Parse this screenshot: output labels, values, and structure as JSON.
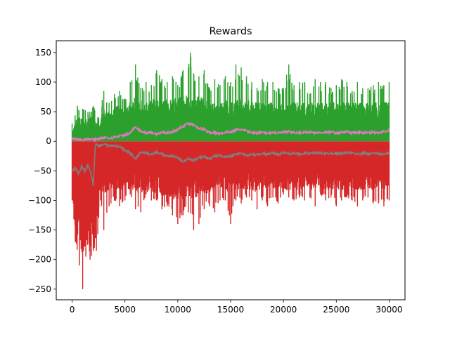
{
  "chart_data": {
    "type": "line",
    "title": "Rewards",
    "xlabel": "",
    "ylabel": "",
    "xlim": [
      -1500,
      31500
    ],
    "ylim": [
      -268,
      170
    ],
    "x_ticks": [
      0,
      5000,
      10000,
      15000,
      20000,
      25000,
      30000
    ],
    "y_ticks": [
      150,
      100,
      50,
      0,
      -50,
      -100,
      -150,
      -200,
      -250
    ],
    "grid": false,
    "legend": "none",
    "series": [
      {
        "color": "#2ca02c",
        "kind": "positive reward envelope",
        "x": [
          0,
          500,
          1000,
          1500,
          2000,
          2500,
          3000,
          3500,
          4000,
          4500,
          5000,
          5500,
          6000,
          6500,
          7000,
          7500,
          8000,
          8500,
          9000,
          9500,
          10000,
          10500,
          11000,
          11200,
          11500,
          12000,
          12500,
          13000,
          13500,
          14000,
          14500,
          15000,
          15500,
          16000,
          16500,
          17000,
          17500,
          18000,
          18500,
          19000,
          19500,
          20000,
          20500,
          21000,
          21500,
          22000,
          22500,
          23000,
          23500,
          24000,
          24500,
          25000,
          25500,
          26000,
          26500,
          27000,
          27500,
          28000,
          28500,
          29000,
          29500,
          30000
        ],
        "max": [
          30,
          60,
          55,
          50,
          60,
          40,
          85,
          65,
          80,
          85,
          70,
          100,
          130,
          90,
          100,
          95,
          120,
          105,
          100,
          110,
          95,
          120,
          125,
          150,
          115,
          110,
          120,
          90,
          105,
          95,
          110,
          100,
          130,
          125,
          110,
          100,
          90,
          105,
          100,
          100,
          90,
          90,
          130,
          95,
          100,
          100,
          80,
          105,
          100,
          100,
          90,
          95,
          105,
          100,
          85,
          100,
          90,
          90,
          95,
          100,
          95,
          100
        ],
        "typ": [
          15,
          40,
          35,
          35,
          40,
          25,
          50,
          45,
          55,
          55,
          55,
          60,
          70,
          65,
          60,
          65,
          65,
          65,
          65,
          65,
          70,
          70,
          75,
          75,
          70,
          70,
          70,
          60,
          60,
          60,
          65,
          60,
          65,
          65,
          65,
          60,
          60,
          60,
          60,
          60,
          60,
          60,
          60,
          60,
          60,
          60,
          60,
          60,
          60,
          60,
          60,
          60,
          60,
          60,
          60,
          60,
          60,
          60,
          60,
          60,
          60,
          60
        ]
      },
      {
        "color": "#d62728",
        "kind": "negative reward envelope",
        "x": [
          0,
          300,
          700,
          1000,
          1300,
          1700,
          2000,
          2300,
          2700,
          3000,
          3500,
          4000,
          4500,
          5000,
          5500,
          6000,
          6500,
          7000,
          7500,
          8000,
          8500,
          9000,
          9500,
          10000,
          10500,
          11000,
          11500,
          12000,
          12500,
          13000,
          13500,
          14000,
          14500,
          15000,
          15500,
          16000,
          16500,
          17000,
          17500,
          18000,
          18500,
          19000,
          19500,
          20000,
          20500,
          21000,
          21500,
          22000,
          22500,
          23000,
          23500,
          24000,
          24500,
          25000,
          25500,
          26000,
          26500,
          27000,
          27500,
          28000,
          28500,
          29000,
          29500,
          30000
        ],
        "min": [
          -100,
          -170,
          -210,
          -250,
          -195,
          -200,
          -185,
          -185,
          -100,
          -150,
          -110,
          -100,
          -110,
          -100,
          -90,
          -115,
          -120,
          -90,
          -100,
          -100,
          -115,
          -110,
          -125,
          -140,
          -125,
          -120,
          -150,
          -140,
          -115,
          -110,
          -120,
          -100,
          -100,
          -140,
          -100,
          -105,
          -95,
          -100,
          -115,
          -100,
          -110,
          -95,
          -105,
          -90,
          -95,
          -100,
          -95,
          -100,
          -95,
          -110,
          -90,
          -100,
          -95,
          -110,
          -100,
          -95,
          -100,
          -110,
          -100,
          -95,
          -105,
          -105,
          -110,
          -100
        ],
        "typ": [
          -90,
          -155,
          -165,
          -175,
          -165,
          -165,
          -160,
          -150,
          -75,
          -80,
          -75,
          -75,
          -75,
          -75,
          -75,
          -80,
          -80,
          -75,
          -80,
          -80,
          -85,
          -85,
          -90,
          -90,
          -90,
          -85,
          -90,
          -85,
          -80,
          -80,
          -80,
          -75,
          -75,
          -80,
          -75,
          -75,
          -75,
          -75,
          -80,
          -75,
          -75,
          -75,
          -75,
          -75,
          -75,
          -75,
          -75,
          -75,
          -75,
          -75,
          -75,
          -75,
          -75,
          -75,
          -75,
          -75,
          -75,
          -75,
          -75,
          -75,
          -75,
          -75,
          -75,
          -75
        ]
      },
      {
        "color": "#e377c2",
        "kind": "mean positive reward",
        "x": [
          0,
          500,
          1000,
          1500,
          2000,
          2500,
          3000,
          3500,
          4000,
          4500,
          5000,
          5500,
          6000,
          6500,
          7000,
          7500,
          8000,
          8500,
          9000,
          9500,
          10000,
          10500,
          11000,
          11500,
          12000,
          12500,
          13000,
          13500,
          14000,
          14500,
          15000,
          15500,
          16000,
          16500,
          17000,
          17500,
          18000,
          18500,
          19000,
          19500,
          20000,
          20500,
          21000,
          21500,
          22000,
          22500,
          23000,
          23500,
          24000,
          24500,
          25000,
          25500,
          26000,
          26500,
          27000,
          27500,
          28000,
          28500,
          29000,
          29500,
          30000
        ],
        "y": [
          5,
          4,
          3,
          4,
          3,
          4,
          6,
          5,
          7,
          9,
          10,
          14,
          25,
          17,
          14,
          15,
          12,
          15,
          14,
          16,
          20,
          26,
          30,
          28,
          22,
          20,
          15,
          14,
          13,
          15,
          16,
          19,
          20,
          17,
          15,
          14,
          15,
          14,
          15,
          14,
          15,
          16,
          15,
          14,
          15,
          16,
          14,
          15,
          15,
          16,
          14,
          15,
          16,
          14,
          15,
          14,
          15,
          15,
          14,
          16,
          18
        ]
      },
      {
        "color": "#7f7f7f",
        "kind": "mean negative reward",
        "x": [
          0,
          300,
          600,
          900,
          1200,
          1500,
          1800,
          2000,
          2200,
          2500,
          3000,
          3500,
          4000,
          4500,
          5000,
          5500,
          6000,
          6500,
          7000,
          7500,
          8000,
          8500,
          9000,
          9500,
          10000,
          10500,
          11000,
          11500,
          12000,
          12500,
          13000,
          13500,
          14000,
          14500,
          15000,
          15500,
          16000,
          16500,
          17000,
          17500,
          18000,
          18500,
          19000,
          19500,
          20000,
          20500,
          21000,
          21500,
          22000,
          22500,
          23000,
          23500,
          24000,
          24500,
          25000,
          25500,
          26000,
          26500,
          27000,
          27500,
          28000,
          28500,
          29000,
          29500,
          30000
        ],
        "y": [
          -50,
          -45,
          -55,
          -42,
          -50,
          -40,
          -55,
          -75,
          -5,
          -8,
          -5,
          -8,
          -7,
          -10,
          -15,
          -20,
          -30,
          -18,
          -20,
          -22,
          -18,
          -22,
          -25,
          -24,
          -28,
          -35,
          -30,
          -32,
          -28,
          -26,
          -30,
          -25,
          -24,
          -26,
          -25,
          -22,
          -20,
          -24,
          -22,
          -23,
          -21,
          -22,
          -20,
          -22,
          -19,
          -21,
          -20,
          -22,
          -20,
          -21,
          -20,
          -19,
          -21,
          -20,
          -20,
          -21,
          -19,
          -20,
          -22,
          -20,
          -21,
          -20,
          -21,
          -22,
          -20
        ]
      }
    ]
  }
}
